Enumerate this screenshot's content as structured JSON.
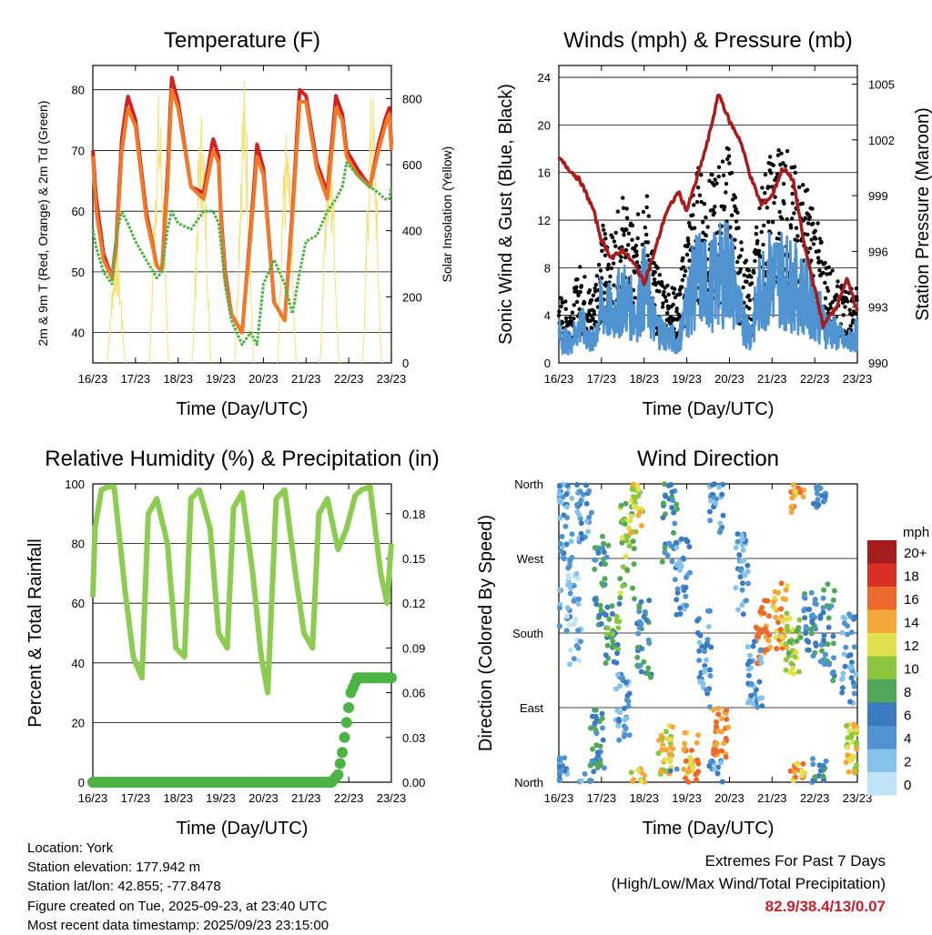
{
  "colors": {
    "red": "#d42020",
    "orange": "#f07a28",
    "green": "#4cb344",
    "yellow": "#f5e070",
    "maroon": "#a81c1c",
    "blue": "#4f93d0",
    "black": "#000000",
    "rh": "#8ccc50",
    "precip": "#4cb344",
    "extremes": "#c8202a"
  },
  "x_ticks": [
    "16/23",
    "17/23",
    "18/23",
    "19/23",
    "20/23",
    "21/23",
    "22/23",
    "23/23"
  ],
  "chart_data": [
    {
      "type": "line",
      "title": "Temperature (F)",
      "xlabel": "Time (Day/UTC)",
      "ylabel": "2m & 9m T (Red, Orange) & 2m Td (Green)",
      "y2label": "Solar Insolation (Yellow)",
      "ylim": [
        35,
        84
      ],
      "yticks": [
        "40",
        "50",
        "60",
        "70",
        "80"
      ],
      "y2lim": [
        0,
        900
      ],
      "y2ticks": [
        "0",
        "200",
        "400",
        "600",
        "800"
      ],
      "x_days": [
        0,
        0.08,
        0.25,
        0.45,
        0.55,
        0.68,
        0.82,
        1.0,
        1.25,
        1.5,
        1.62,
        1.75,
        1.85,
        2.0,
        2.3,
        2.6,
        2.82,
        2.95,
        3.0,
        3.1,
        3.25,
        3.5,
        3.7,
        3.85,
        4.0,
        4.25,
        4.5,
        4.68,
        4.85,
        5.0,
        5.25,
        5.5,
        5.7,
        5.85,
        5.95,
        6.2,
        6.5,
        6.7,
        6.85,
        6.95,
        7.0
      ],
      "series": [
        {
          "name": "2m T",
          "color": "#d42020",
          "values": [
            70,
            62,
            53,
            49,
            55,
            72,
            79,
            75,
            60,
            51,
            50,
            66,
            82,
            78,
            64,
            63,
            72,
            69,
            60,
            50,
            43,
            40,
            57,
            71,
            67,
            45,
            42,
            60,
            80,
            79,
            68,
            63,
            79,
            76,
            70,
            67,
            64,
            71,
            75,
            77,
            71
          ]
        },
        {
          "name": "9m T",
          "color": "#f07a28",
          "values": [
            69,
            60,
            52,
            49,
            54,
            70,
            77,
            74,
            59,
            51,
            50,
            64,
            80,
            77,
            64,
            62,
            70,
            68,
            59,
            49,
            43,
            40,
            56,
            69,
            66,
            45,
            42,
            59,
            78,
            78,
            67,
            62,
            77,
            75,
            69,
            66,
            64,
            70,
            74,
            76,
            70
          ]
        },
        {
          "name": "2m Td",
          "color": "#4cb344",
          "values": [
            57,
            54,
            50,
            48,
            56,
            60,
            58,
            55,
            52,
            49,
            50,
            57,
            60,
            58,
            57,
            60,
            60,
            58,
            55,
            48,
            42,
            38,
            40,
            38,
            48,
            52,
            48,
            43,
            50,
            55,
            56,
            60,
            62,
            64,
            68,
            66,
            64,
            63,
            62,
            62,
            64
          ]
        }
      ],
      "insolation": {
        "color": "#f5e070",
        "days": [
          0.3,
          1.3,
          2.3,
          3.3,
          4.3,
          5.3,
          6.3
        ],
        "peaks": [
          350,
          830,
          780,
          880,
          720,
          750,
          850
        ]
      }
    },
    {
      "type": "line",
      "title": "Winds (mph) & Pressure (mb)",
      "xlabel": "Time (Day/UTC)",
      "ylabel": "Sonic Wind & Gust (Blue, Black)",
      "y2label": "Station Pressure (Maroon)",
      "ylim": [
        0,
        25
      ],
      "yticks": [
        "0",
        "4",
        "8",
        "12",
        "16",
        "20",
        "24"
      ],
      "y2lim": [
        990,
        1006
      ],
      "y2ticks": [
        "990",
        "993",
        "996",
        "999",
        "1002",
        "1005"
      ],
      "x_days": [
        0,
        0.25,
        0.5,
        0.8,
        1.0,
        1.25,
        1.5,
        1.8,
        2.0,
        2.25,
        2.5,
        2.8,
        3.0,
        3.25,
        3.5,
        3.75,
        4.0,
        4.25,
        4.5,
        4.75,
        5.0,
        5.25,
        5.5,
        5.75,
        6.0,
        6.2,
        6.5,
        6.75,
        7.0
      ],
      "wind": [
        3,
        2,
        4,
        2,
        6,
        5,
        7,
        5,
        8,
        4,
        3,
        2,
        6,
        9,
        8,
        9,
        10,
        5,
        3,
        8,
        9,
        9,
        8,
        7,
        6,
        4,
        3,
        2,
        3
      ],
      "gust": [
        5,
        4,
        7,
        5,
        10,
        9,
        12,
        9,
        14,
        7,
        6,
        5,
        10,
        14,
        13,
        14,
        16,
        9,
        6,
        13,
        15,
        16,
        14,
        13,
        11,
        8,
        6,
        5,
        6
      ],
      "pressure": [
        1001,
        1000.4,
        999.8,
        998.3,
        996.6,
        995.6,
        996.1,
        995.2,
        994.3,
        996,
        998,
        999.2,
        998.2,
        1000,
        1002,
        1004.5,
        1003,
        1002,
        1000,
        998.5,
        999,
        1000.5,
        999.8,
        996.4,
        994,
        992,
        993,
        994.5,
        992.8
      ],
      "pressure_color": "#a81c1c"
    },
    {
      "type": "line",
      "title": "Relative Humidity (%) & Precipitation (in)",
      "xlabel": "Time (Day/UTC)",
      "ylabel": "Percent & Total Rainfall",
      "ylim": [
        0,
        100
      ],
      "yticks": [
        "0",
        "20",
        "40",
        "60",
        "80",
        "100"
      ],
      "y2lim": [
        0,
        0.2
      ],
      "y2ticks": [
        "0.00",
        "0.03",
        "0.06",
        "0.09",
        "0.12",
        "0.15",
        "0.18"
      ],
      "x_days": [
        0,
        0.05,
        0.2,
        0.35,
        0.5,
        0.75,
        0.95,
        1.15,
        1.3,
        1.5,
        1.75,
        1.95,
        2.15,
        2.3,
        2.5,
        2.75,
        2.95,
        3.15,
        3.3,
        3.5,
        3.75,
        3.95,
        4.1,
        4.3,
        4.5,
        4.75,
        4.95,
        5.15,
        5.3,
        5.5,
        5.75,
        5.95,
        6.15,
        6.3,
        6.5,
        6.75,
        6.9,
        7.0
      ],
      "rh": [
        62,
        85,
        98,
        99,
        99,
        65,
        42,
        35,
        90,
        95,
        80,
        45,
        42,
        95,
        98,
        85,
        50,
        45,
        92,
        97,
        70,
        42,
        30,
        95,
        98,
        70,
        50,
        45,
        90,
        95,
        78,
        85,
        96,
        98,
        99,
        70,
        60,
        80
      ],
      "rh_color": "#8ccc50",
      "precip_days": [
        0,
        5.6,
        5.75,
        5.85,
        5.95,
        6.05,
        6.2,
        7.0
      ],
      "precip": [
        0,
        0,
        0.005,
        0.02,
        0.04,
        0.06,
        0.07,
        0.07
      ],
      "precip_color": "#4cb344"
    },
    {
      "type": "scatter",
      "title": "Wind Direction",
      "xlabel": "Time (Day/UTC)",
      "ylabel": "Direction (Colored By Speed)",
      "yticks": [
        "North",
        "East",
        "South",
        "West",
        "North"
      ],
      "legend_title": "mph",
      "legend_labels": [
        "0",
        "2",
        "4",
        "6",
        "8",
        "10",
        "12",
        "14",
        "16",
        "18",
        "20+"
      ],
      "legend_colors": [
        "#bfe3f7",
        "#87c2ea",
        "#4f93d0",
        "#3a7bbf",
        "#52a85a",
        "#8cc63f",
        "#e3e04e",
        "#f5a73a",
        "#ec6a2b",
        "#d93025",
        "#a61b1b"
      ]
    }
  ],
  "info": {
    "location": "Location: York",
    "elevation": "Station elevation: 177.942 m",
    "latlon": "Station lat/lon: 42.855; -77.8478",
    "created": "Figure created on Tue, 2025-09-23, at 23:40 UTC",
    "recent": "Most recent data timestamp: 2025/09/23 23:15:00"
  },
  "extremes": {
    "title": "Extremes For Past 7 Days",
    "subtitle": "(High/Low/Max Wind/Total Precipitation)",
    "values": "82.9/38.4/13/0.07"
  }
}
